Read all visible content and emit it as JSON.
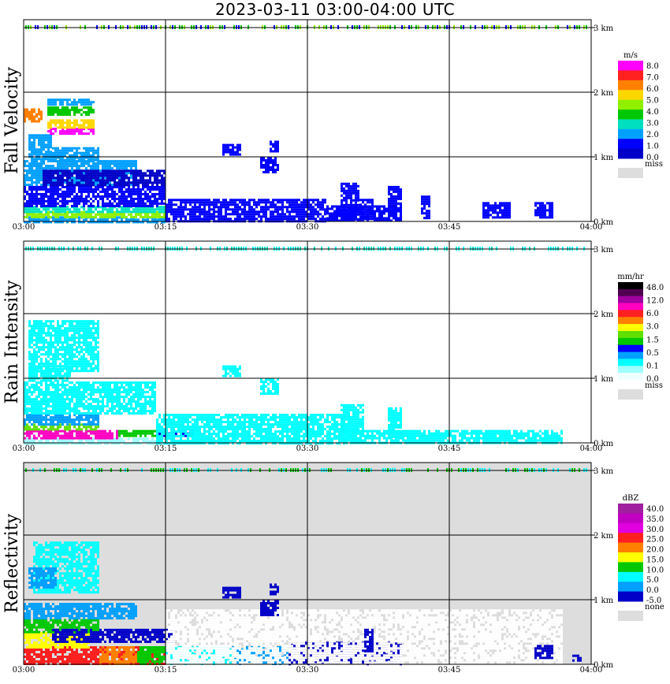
{
  "title": "2023-03-11   03:00-04:00 UTC",
  "chart_data": [
    {
      "type": "heatmap",
      "panel": "fall-velocity",
      "ylabel": "Fall Velocity",
      "x_ticks": [
        "03:00",
        "03:15",
        "03:30",
        "03:45",
        "04:00"
      ],
      "y_ticks": [
        "0 km",
        "1 km",
        "2 km",
        "3 km"
      ],
      "xlim_minutes": [
        0,
        60
      ],
      "ylim_km": [
        0,
        3.1
      ],
      "grid": true,
      "background": "#ffffff",
      "colorbar": {
        "unit": "m/s",
        "labels": [
          "8.0",
          "7.0",
          "6.0",
          "5.0",
          "4.0",
          "3.0",
          "2.0",
          "1.0",
          "0.0"
        ],
        "colors": [
          "#ff00ff",
          "#ff2020",
          "#ff8000",
          "#ffd700",
          "#90f000",
          "#00c800",
          "#00e0c0",
          "#00a0ff",
          "#0000ff",
          "#0000c8"
        ],
        "missing_label": "miss",
        "missing_color": "#dddddd"
      },
      "regions": [
        {
          "t": [
            0.0,
            15.2
          ],
          "h": [
            0.0,
            0.08
          ],
          "c": "#00a0ff"
        },
        {
          "t": [
            0.0,
            15.2
          ],
          "h": [
            0.08,
            0.16
          ],
          "c": "#90f000"
        },
        {
          "t": [
            0.0,
            15.2
          ],
          "h": [
            0.16,
            0.24
          ],
          "c": "#00e0c0"
        },
        {
          "t": [
            0.0,
            15.0
          ],
          "h": [
            0.24,
            0.55
          ],
          "c": "#0000ff"
        },
        {
          "t": [
            15.0,
            32.0
          ],
          "h": [
            0.0,
            0.35
          ],
          "c": "#0000ff"
        },
        {
          "t": [
            32.0,
            40.0
          ],
          "h": [
            0.0,
            0.25
          ],
          "c": "#0000ff"
        },
        {
          "t": [
            0.0,
            12.0
          ],
          "h": [
            0.55,
            0.95
          ],
          "c": "#00a0ff"
        },
        {
          "t": [
            2.0,
            15.0
          ],
          "h": [
            0.55,
            0.8
          ],
          "c": "#0000c8"
        },
        {
          "t": [
            0.5,
            3.0
          ],
          "h": [
            0.95,
            1.35
          ],
          "c": "#00a0ff"
        },
        {
          "t": [
            3.0,
            8.0
          ],
          "h": [
            0.95,
            1.15
          ],
          "c": "#00a0ff"
        },
        {
          "t": [
            2.5,
            7.5
          ],
          "h": [
            1.35,
            1.45
          ],
          "c": "#ff00ff"
        },
        {
          "t": [
            2.5,
            7.5
          ],
          "h": [
            1.45,
            1.58
          ],
          "c": "#ffd700"
        },
        {
          "t": [
            2.5,
            7.5
          ],
          "h": [
            1.65,
            1.78
          ],
          "c": "#00c800"
        },
        {
          "t": [
            2.5,
            7.5
          ],
          "h": [
            1.8,
            1.9
          ],
          "c": "#00a0ff"
        },
        {
          "t": [
            0.0,
            2.0
          ],
          "h": [
            1.55,
            1.75
          ],
          "c": "#ff8000"
        },
        {
          "t": [
            21.0,
            23.0
          ],
          "h": [
            1.05,
            1.2
          ],
          "c": "#0000ff"
        },
        {
          "t": [
            25.0,
            27.0
          ],
          "h": [
            0.75,
            1.0
          ],
          "c": "#0000ff"
        },
        {
          "t": [
            26.0,
            27.0
          ],
          "h": [
            1.1,
            1.25
          ],
          "c": "#0000ff"
        },
        {
          "t": [
            33.5,
            35.5
          ],
          "h": [
            0.05,
            0.6
          ],
          "c": "#0000ff"
        },
        {
          "t": [
            35.5,
            37.0
          ],
          "h": [
            0.05,
            0.35
          ],
          "c": "#0000ff"
        },
        {
          "t": [
            38.5,
            40.0
          ],
          "h": [
            0.1,
            0.55
          ],
          "c": "#0000ff"
        },
        {
          "t": [
            48.5,
            51.5
          ],
          "h": [
            0.05,
            0.3
          ],
          "c": "#0000ff"
        },
        {
          "t": [
            54.0,
            56.0
          ],
          "h": [
            0.05,
            0.3
          ],
          "c": "#0000ff"
        },
        {
          "t": [
            42.0,
            43.0
          ],
          "h": [
            0.05,
            0.4
          ],
          "c": "#0000ff"
        }
      ],
      "strip": {
        "h": 3.0,
        "colors": [
          "#90f000",
          "#00c800",
          "#0000ff"
        ]
      }
    },
    {
      "type": "heatmap",
      "panel": "rain-intensity",
      "ylabel": "Rain Intensity",
      "x_ticks": [
        "03:00",
        "03:15",
        "03:30",
        "03:45",
        "04:00"
      ],
      "y_ticks": [
        "0 km",
        "1 km",
        "2 km",
        "3 km"
      ],
      "xlim_minutes": [
        0,
        60
      ],
      "ylim_km": [
        0,
        3.1
      ],
      "grid": true,
      "background": "#ffffff",
      "colorbar": {
        "unit": "mm/hr",
        "labels": [
          "48.0",
          "12.0",
          "6.0",
          "3.0",
          "1.5",
          "0.5",
          "0.1",
          "0.0"
        ],
        "colors": [
          "#000000",
          "#500050",
          "#a000a0",
          "#ff00c0",
          "#ff2020",
          "#ff8000",
          "#ffff00",
          "#60e000",
          "#00c800",
          "#0000ff",
          "#00a0ff",
          "#00ffff",
          "#a0ffff",
          "#f0ffff"
        ],
        "missing_label": "miss",
        "missing_color": "#dddddd"
      },
      "regions": [
        {
          "t": [
            0.0,
            15.0
          ],
          "h": [
            0.0,
            0.08
          ],
          "c": "#a0ffff"
        },
        {
          "t": [
            0.0,
            10.0
          ],
          "h": [
            0.08,
            0.2
          ],
          "c": "#ff00c0"
        },
        {
          "t": [
            10.0,
            14.0
          ],
          "h": [
            0.1,
            0.2
          ],
          "c": "#00c800"
        },
        {
          "t": [
            14.0,
            18.0
          ],
          "h": [
            0.1,
            0.2
          ],
          "c": "#0000ff"
        },
        {
          "t": [
            0.0,
            8.0
          ],
          "h": [
            0.2,
            0.3
          ],
          "c": "#60e000"
        },
        {
          "t": [
            0.0,
            8.0
          ],
          "h": [
            0.3,
            0.45
          ],
          "c": "#00a0ff"
        },
        {
          "t": [
            0.0,
            14.0
          ],
          "h": [
            0.45,
            0.95
          ],
          "c": "#00ffff"
        },
        {
          "t": [
            14.0,
            34.0
          ],
          "h": [
            0.0,
            0.45
          ],
          "c": "#00ffff"
        },
        {
          "t": [
            34.0,
            57.0
          ],
          "h": [
            0.0,
            0.2
          ],
          "c": "#00ffff"
        },
        {
          "t": [
            0.5,
            8.0
          ],
          "h": [
            1.1,
            1.9
          ],
          "c": "#00ffff"
        },
        {
          "t": [
            0.5,
            5.0
          ],
          "h": [
            0.95,
            1.2
          ],
          "c": "#00ffff"
        },
        {
          "t": [
            25.0,
            27.0
          ],
          "h": [
            0.75,
            1.0
          ],
          "c": "#00ffff"
        },
        {
          "t": [
            21.0,
            23.0
          ],
          "h": [
            1.05,
            1.2
          ],
          "c": "#00ffff"
        },
        {
          "t": [
            33.5,
            36.0
          ],
          "h": [
            0.05,
            0.6
          ],
          "c": "#00ffff"
        },
        {
          "t": [
            38.5,
            40.0
          ],
          "h": [
            0.1,
            0.55
          ],
          "c": "#00ffff"
        }
      ],
      "strip": {
        "h": 3.0,
        "colors": [
          "#00ffff",
          "#00e0c0"
        ]
      }
    },
    {
      "type": "heatmap",
      "panel": "reflectivity",
      "ylabel": "Reflectivity",
      "x_ticks": [
        "03:00",
        "03:15",
        "03:30",
        "03:45",
        "04:00"
      ],
      "y_ticks": [
        "0 km",
        "1 km",
        "2 km",
        "3 km"
      ],
      "xlim_minutes": [
        0,
        60
      ],
      "ylim_km": [
        0,
        3.1
      ],
      "grid": true,
      "background": "#dddddd",
      "colorbar": {
        "unit": "dBZ",
        "labels": [
          "40.0",
          "35.0",
          "30.0",
          "25.0",
          "20.0",
          "15.0",
          "10.0",
          "5.0",
          "0.0",
          "-5.0"
        ],
        "colors": [
          "#a020a0",
          "#c000c0",
          "#e000e0",
          "#ff2020",
          "#ff8000",
          "#ffff00",
          "#00c800",
          "#00ffff",
          "#00a0ff",
          "#0000c8"
        ],
        "missing_label": "none",
        "missing_color": "#dddddd"
      },
      "regions": [
        {
          "t": [
            0.0,
            15.0
          ],
          "h": [
            0.0,
            0.28
          ],
          "c": "#ff2020"
        },
        {
          "t": [
            8.0,
            12.0
          ],
          "h": [
            0.0,
            0.28
          ],
          "c": "#ff8000"
        },
        {
          "t": [
            12.0,
            15.0
          ],
          "h": [
            0.0,
            0.28
          ],
          "c": "#00c800"
        },
        {
          "t": [
            15.0,
            22.0
          ],
          "h": [
            0.0,
            0.28
          ],
          "c": "#00ffff"
        },
        {
          "t": [
            22.0,
            28.0
          ],
          "h": [
            0.0,
            0.28
          ],
          "c": "#00a0ff"
        },
        {
          "t": [
            0.0,
            7.0
          ],
          "h": [
            0.28,
            0.5
          ],
          "c": "#ffff00"
        },
        {
          "t": [
            0.0,
            8.0
          ],
          "h": [
            0.5,
            0.7
          ],
          "c": "#00c800"
        },
        {
          "t": [
            0.0,
            12.0
          ],
          "h": [
            0.7,
            0.95
          ],
          "c": "#00a0ff"
        },
        {
          "t": [
            3.0,
            16.0
          ],
          "h": [
            0.35,
            0.55
          ],
          "c": "#0000c8"
        },
        {
          "t": [
            28.0,
            40.0
          ],
          "h": [
            0.0,
            0.35
          ],
          "c": "#0000c8"
        },
        {
          "t": [
            15.0,
            57.0
          ],
          "h": [
            0.0,
            0.85
          ],
          "c": "#ffffff"
        },
        {
          "t": [
            1.0,
            8.0
          ],
          "h": [
            1.1,
            1.9
          ],
          "c": "#00ffff"
        },
        {
          "t": [
            0.5,
            3.5
          ],
          "h": [
            1.2,
            1.5
          ],
          "c": "#00a0ff"
        },
        {
          "t": [
            21.0,
            23.0
          ],
          "h": [
            1.05,
            1.2
          ],
          "c": "#0000c8"
        },
        {
          "t": [
            25.0,
            27.0
          ],
          "h": [
            0.75,
            1.0
          ],
          "c": "#0000c8"
        },
        {
          "t": [
            26.0,
            27.0
          ],
          "h": [
            1.1,
            1.25
          ],
          "c": "#0000c8"
        },
        {
          "t": [
            36.0,
            37.0
          ],
          "h": [
            0.2,
            0.55
          ],
          "c": "#0000c8"
        },
        {
          "t": [
            54.0,
            56.0
          ],
          "h": [
            0.1,
            0.3
          ],
          "c": "#0000c8"
        },
        {
          "t": [
            58.0,
            59.0
          ],
          "h": [
            0.05,
            0.15
          ],
          "c": "#0000c8"
        }
      ],
      "strip": {
        "h": 3.0,
        "colors": [
          "#00c800",
          "#00ffff"
        ]
      }
    }
  ]
}
